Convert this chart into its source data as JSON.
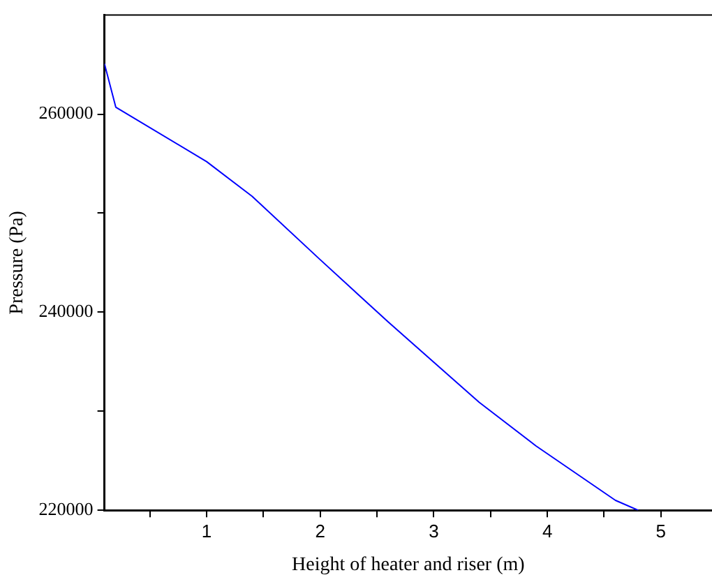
{
  "chart_data": {
    "type": "line",
    "xlabel": "Height of heater and riser (m)",
    "ylabel": "Pressure (Pa)",
    "xlim": [
      0.1,
      5.45
    ],
    "xticks": [
      {
        "value": 0.5,
        "label": null
      },
      1,
      {
        "value": 1.5,
        "label": null
      },
      2,
      {
        "value": 2.5,
        "label": null
      },
      3,
      {
        "value": 3.5,
        "label": null
      },
      4,
      {
        "value": 4.5,
        "label": null
      },
      5
    ],
    "ylim": [
      220000,
      270000
    ],
    "yticks": [
      220000,
      {
        "value": 230000,
        "label": null
      },
      240000,
      {
        "value": 250000,
        "label": null
      },
      260000
    ],
    "series": [
      {
        "color": "#0000ff",
        "x": [
          0.1,
          0.2,
          1,
          1.4,
          2,
          2.6,
          3.4,
          3.9,
          4.6,
          4.8
        ],
        "values": [
          265100,
          260700,
          255200,
          251700,
          245300,
          239000,
          230900,
          226500,
          221000,
          220000
        ]
      }
    ],
    "grid": false,
    "legend": false,
    "marker": "none",
    "line_style": "solid"
  }
}
